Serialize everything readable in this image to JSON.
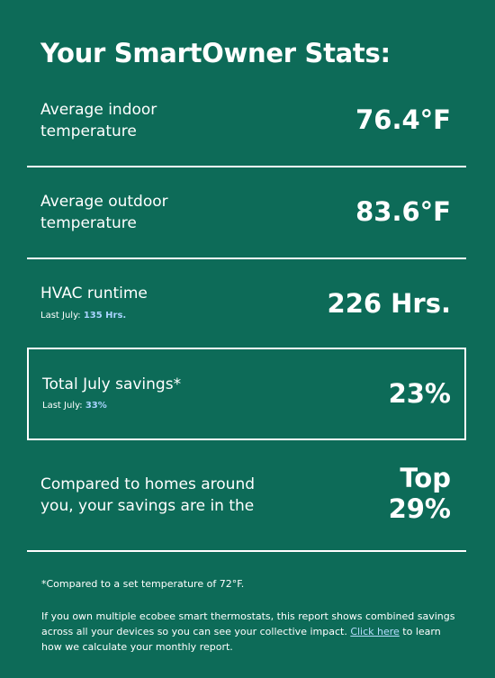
{
  "header": {
    "title": "Your SmartOwner Stats:"
  },
  "stats": [
    {
      "label_line1": "Average indoor",
      "label_line2": "temperature",
      "value": "76.4°F"
    },
    {
      "label_line1": "Average outdoor",
      "label_line2": "temperature",
      "value": "83.6°F"
    },
    {
      "label": "HVAC runtime",
      "sub_prefix": "Last July:",
      "sub_value": "135 Hrs.",
      "value": "226 Hrs."
    },
    {
      "label": "Total July savings*",
      "sub_prefix": "Last July:",
      "sub_value": "33%",
      "value": "23%"
    },
    {
      "label_line1": "Compared to homes around",
      "label_line2": "you, your savings are in the",
      "value_line1": "Top",
      "value_line2": "29%"
    }
  ],
  "footer": {
    "note": "*Compared to a set temperature of 72°F.",
    "line1": "If you own multiple ecobee smart thermostats, this report shows combined savings",
    "line2_before_link": "across all your devices so you can see your collective impact. ",
    "link_text": "Click here",
    "line2_after_link": " to learn",
    "line3": "how we calculate your monthly report."
  },
  "colors": {
    "background": "#0d6b58",
    "text": "#ffffff",
    "highlight": "#a9d4ff",
    "link": "#b7dcff"
  }
}
